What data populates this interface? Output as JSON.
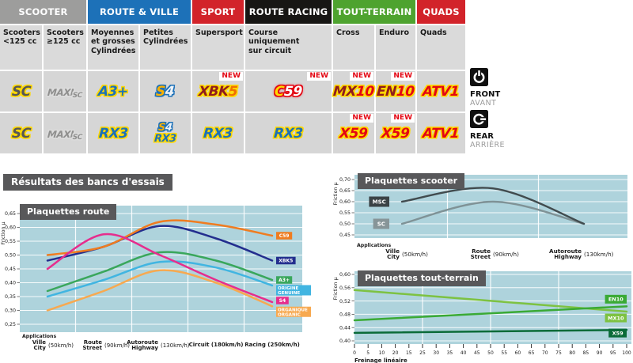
{
  "section_title": "Résultats des bancs d'essais",
  "table": {
    "new_label": "NEW",
    "categories": [
      {
        "label": "SCOOTER",
        "color": "#9d9d9c",
        "span": 2
      },
      {
        "label": "ROUTE & VILLE",
        "color": "#1d71b8",
        "span": 2
      },
      {
        "label": "SPORT",
        "color": "#d2232a",
        "span": 1
      },
      {
        "label": "ROUTE RACING",
        "color": "#171614",
        "span": 1
      },
      {
        "label": "TOUT-TERRAIN",
        "color": "#4ea32f",
        "span": 2
      },
      {
        "label": "QUADS",
        "color": "#d2232a",
        "span": 1
      }
    ],
    "columns": [
      {
        "header": "Scooters\n<125 cc",
        "front": {
          "products": [
            "sc"
          ]
        },
        "rear": {
          "products": [
            "sc"
          ]
        }
      },
      {
        "header": "Scooters\n≥125 cc",
        "front": {
          "products": [
            "maxisc"
          ]
        },
        "rear": {
          "products": [
            "maxisc"
          ]
        }
      },
      {
        "header": "Moyennes\net grosses\nCylindrées",
        "front": {
          "products": [
            "a3plus"
          ]
        },
        "rear": {
          "products": [
            "rx3"
          ]
        }
      },
      {
        "header": "Petites\nCylindrées",
        "front": {
          "products": [
            "s4"
          ]
        },
        "rear": {
          "products": [
            "s4",
            "rx3"
          ]
        }
      },
      {
        "header": "Supersport",
        "front": {
          "products": [
            "xbk5"
          ],
          "new": true
        },
        "rear": {
          "products": [
            "rx3"
          ]
        }
      },
      {
        "header": "Course\nuniquement\nsur circuit",
        "front": {
          "products": [
            "c59"
          ],
          "new": true
        },
        "rear": {
          "products": [
            "rx3"
          ]
        }
      },
      {
        "header": "Cross",
        "front": {
          "products": [
            "mx10"
          ],
          "new": true
        },
        "rear": {
          "products": [
            "x59"
          ],
          "new": true
        }
      },
      {
        "header": "Enduro",
        "front": {
          "products": [
            "en10"
          ],
          "new": true
        },
        "rear": {
          "products": [
            "x59"
          ],
          "new": true
        }
      },
      {
        "header": "Quads",
        "front": {
          "products": [
            "atv1"
          ]
        },
        "rear": {
          "products": [
            "atv1"
          ]
        }
      }
    ]
  },
  "products": {
    "sc": {
      "name": "SC",
      "parts": [
        {
          "t": "SC",
          "cls": "ink-gray out-yellow"
        }
      ]
    },
    "maxisc": {
      "name": "MAXI SC",
      "parts": [
        {
          "t": "MAXI",
          "cls": "ink-silver out-silver maxi-main"
        },
        {
          "t": "SC",
          "cls": "ink-silver out-silver maxi-sub"
        }
      ]
    },
    "a3plus": {
      "name": "A3+",
      "parts": [
        {
          "t": "A3+",
          "cls": "ink-blue out-yellow"
        }
      ]
    },
    "s4": {
      "name": "S4",
      "parts": [
        {
          "t": "S",
          "cls": "ink-amber out-blue"
        },
        {
          "t": "4",
          "cls": "ink-ice out-blue"
        }
      ]
    },
    "rx3": {
      "name": "RX3",
      "parts": [
        {
          "t": "RX3",
          "cls": "ink-blue out-yellow"
        }
      ]
    },
    "xbk5": {
      "name": "XBK5",
      "parts": [
        {
          "t": "XBK",
          "cls": "ink-maroon out-gold"
        },
        {
          "t": "5",
          "cls": "ink-orangered out-gold"
        }
      ]
    },
    "c59": {
      "name": "C59",
      "parts": [
        {
          "t": "C",
          "cls": "ink-gold glow out-red"
        },
        {
          "t": "59",
          "cls": "ink-white glow out-red"
        }
      ]
    },
    "mx10": {
      "name": "MX10",
      "parts": [
        {
          "t": "MX",
          "cls": "ink-maroon out-gold"
        },
        {
          "t": "10",
          "cls": "ink-red out-gold"
        }
      ]
    },
    "en10": {
      "name": "EN10",
      "parts": [
        {
          "t": "EN",
          "cls": "ink-maroon out-gold"
        },
        {
          "t": "10",
          "cls": "ink-red out-gold"
        }
      ]
    },
    "atv1": {
      "name": "ATV1",
      "parts": [
        {
          "t": "ATV1",
          "cls": "ink-red out-gold"
        }
      ]
    },
    "x59": {
      "name": "X59",
      "parts": [
        {
          "t": "X59",
          "cls": "ink-red out-gold"
        }
      ]
    }
  },
  "side_labels": {
    "front": {
      "en": "FRONT",
      "fr": "AVANT"
    },
    "rear": {
      "en": "REAR",
      "fr": "ARRIÈRE"
    }
  },
  "chart_data": [
    {
      "id": "route",
      "type": "line",
      "title": "Plaquettes route",
      "ylabel": "Friction µ",
      "xlabel": "Applications",
      "ylim": [
        0.25,
        0.65
      ],
      "grid": true,
      "legend_position": "right-of-line-ends",
      "yticks": [
        {
          "label": "0,65",
          "value": 0.65
        },
        {
          "label": "0,60",
          "value": 0.6
        },
        {
          "label": "0,55",
          "value": 0.55
        },
        {
          "label": "0,50",
          "value": 0.5
        },
        {
          "label": "0,45",
          "value": 0.45
        },
        {
          "label": "0,40",
          "value": 0.4
        },
        {
          "label": "0,35",
          "value": 0.35
        },
        {
          "label": "0,30",
          "value": 0.3
        },
        {
          "label": "0,25",
          "value": 0.25
        }
      ],
      "x_categories": [
        {
          "line1": "Ville",
          "line2": "City",
          "speed": "(50km/h)"
        },
        {
          "line1": "Route",
          "line2": "Street",
          "speed": "(90km/h)"
        },
        {
          "line1": "Autoroute",
          "line2": "Highway",
          "speed": "(130km/h)"
        },
        {
          "line1": "Circuit (180km/h)"
        },
        {
          "line1": "Racing (250km/h)"
        }
      ],
      "series": [
        {
          "name": "ORGANIQUE",
          "label_lines": [
            "ORGANIQUE",
            "ORGANIC"
          ],
          "color": "#f7a950",
          "values": [
            0.3,
            0.37,
            0.445,
            0.4,
            0.315
          ]
        },
        {
          "name": "ORIGINE",
          "label_lines": [
            "ORIGINE",
            "GENUINE"
          ],
          "color": "#41b5e1",
          "values": [
            0.35,
            0.41,
            0.475,
            0.455,
            0.39
          ]
        },
        {
          "name": "A3+",
          "label_lines": [
            "A3+"
          ],
          "color": "#3aa75c",
          "values": [
            0.37,
            0.44,
            0.51,
            0.48,
            0.41
          ]
        },
        {
          "name": "XBK5",
          "label_lines": [
            "XBK5"
          ],
          "color": "#232e8e",
          "values": [
            0.48,
            0.53,
            0.605,
            0.56,
            0.48
          ]
        },
        {
          "name": "C59",
          "label_lines": [
            "C59"
          ],
          "color": "#ef7c20",
          "values": [
            0.5,
            0.53,
            0.62,
            0.61,
            0.57
          ]
        },
        {
          "name": "S4",
          "label_lines": [
            "S4"
          ],
          "color": "#e62d8d",
          "values": [
            0.45,
            0.575,
            0.5,
            0.41,
            0.33
          ]
        }
      ]
    },
    {
      "id": "scooter",
      "type": "line",
      "title": "Plaquettes scooter",
      "ylabel": "Friction µ",
      "xlabel": "Applications",
      "ylim": [
        0.45,
        0.7
      ],
      "grid": true,
      "legend_position": "left-of-line-starts",
      "yticks": [
        {
          "label": "0,70",
          "value": 0.7
        },
        {
          "label": "0,65",
          "value": 0.65
        },
        {
          "label": "0,60",
          "value": 0.6
        },
        {
          "label": "0,55",
          "value": 0.55
        },
        {
          "label": "0,50",
          "value": 0.5
        },
        {
          "label": "0,45",
          "value": 0.45
        }
      ],
      "x_categories": [
        {
          "line1": "Ville",
          "line2": "City",
          "speed": "(50km/h)"
        },
        {
          "line1": "Route",
          "line2": "Street",
          "speed": "(90km/h)"
        },
        {
          "line1": "Autoroute",
          "line2": "Highway",
          "speed": "(130km/h)"
        }
      ],
      "series": [
        {
          "name": "SC",
          "label_lines": [
            "SC"
          ],
          "color": "#7f9296",
          "label_bg": "#879598",
          "values": [
            0.5,
            0.6,
            0.5
          ]
        },
        {
          "name": "MSC",
          "label_lines": [
            "MSC"
          ],
          "color": "#414b4e",
          "label_bg": "#3b4245",
          "values": [
            0.6,
            0.66,
            0.5
          ]
        }
      ]
    },
    {
      "id": "tout-terrain",
      "type": "line",
      "title": "Plaquettes tout-terrain",
      "ylabel": "Friction µ",
      "xlabel": "Freinage linéaire",
      "ylim": [
        0.4,
        0.6
      ],
      "xlim": [
        0,
        100
      ],
      "grid": true,
      "legend_position": "right-inside",
      "yticks": [
        {
          "label": "0,60",
          "value": 0.6
        },
        {
          "label": "0,56",
          "value": 0.56
        },
        {
          "label": "0,52",
          "value": 0.52
        },
        {
          "label": "0,48",
          "value": 0.48
        },
        {
          "label": "0,44",
          "value": 0.44
        },
        {
          "label": "0,40",
          "value": 0.4
        }
      ],
      "xtick_labels": [
        "0",
        "5",
        "10",
        "20",
        "15",
        "25",
        "30",
        "35",
        "40",
        "45",
        "50",
        "55",
        "60",
        "65",
        "70",
        "75",
        "80",
        "85",
        "90",
        "95",
        "100"
      ],
      "series": [
        {
          "name": "MX10",
          "label_lines": [
            "MX10"
          ],
          "color": "#7dc242",
          "label_bg": "#7dc242",
          "values": [
            [
              0,
              0.553
            ],
            [
              100,
              0.488
            ]
          ]
        },
        {
          "name": "EN10",
          "label_lines": [
            "EN10"
          ],
          "color": "#3aaa35",
          "label_bg": "#3aaa35",
          "values": [
            [
              0,
              0.462
            ],
            [
              100,
              0.504
            ]
          ]
        },
        {
          "name": "X59",
          "label_lines": [
            "X59"
          ],
          "color": "#0a6b38",
          "label_bg": "#0a6b38",
          "values": [
            [
              0,
              0.424
            ],
            [
              100,
              0.433
            ]
          ]
        }
      ]
    }
  ]
}
